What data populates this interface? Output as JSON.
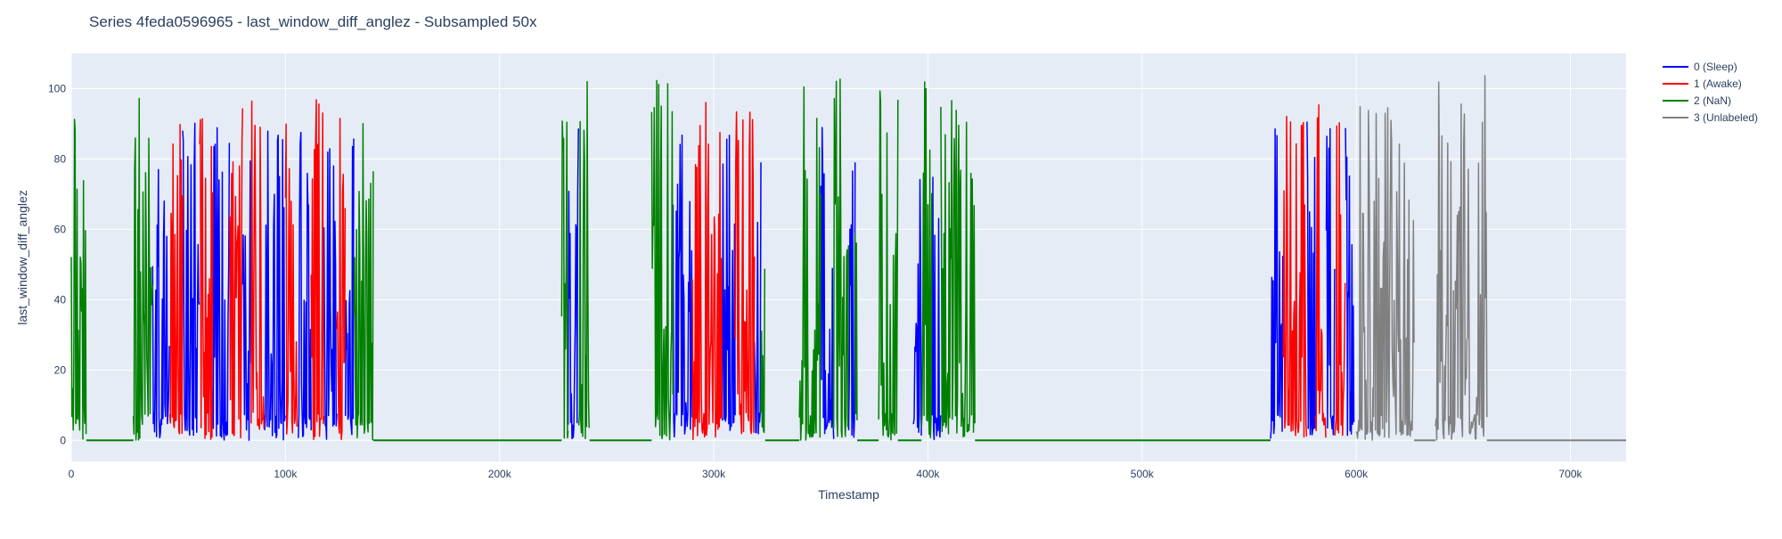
{
  "chart_data": {
    "type": "line",
    "title": "Series 4feda0596965 - last_window_diff_anglez - Subsampled 50x",
    "xlabel": "Timestamp",
    "ylabel": "last_window_diff_anglez",
    "xlim": [
      0,
      726000
    ],
    "ylim": [
      -6,
      110
    ],
    "x_ticks": [
      0,
      100000,
      200000,
      300000,
      400000,
      500000,
      600000,
      700000
    ],
    "x_tick_labels": [
      "0",
      "100k",
      "200k",
      "300k",
      "400k",
      "500k",
      "600k",
      "700k"
    ],
    "y_ticks": [
      0,
      20,
      40,
      60,
      80,
      100
    ],
    "y_tick_labels": [
      "0",
      "20",
      "40",
      "60",
      "80",
      "100"
    ],
    "grid": true,
    "legend_position": "top-right, outside plot",
    "background_color": "#E5ECF6",
    "grid_color": "#ffffff",
    "series": [
      {
        "name": "0 (Sleep)",
        "color": "#0000FF",
        "segments": [
          [
            38000,
            46000
          ],
          [
            52000,
            60000
          ],
          [
            66000,
            74000
          ],
          [
            80000,
            84000
          ],
          [
            90000,
            100000
          ],
          [
            106000,
            112000
          ],
          [
            118000,
            124000
          ],
          [
            128000,
            132000
          ],
          [
            232000,
            237000
          ],
          [
            281000,
            290000
          ],
          [
            304000,
            310000
          ],
          [
            319000,
            322000
          ],
          [
            350000,
            356000
          ],
          [
            363000,
            366000
          ],
          [
            393000,
            397000
          ],
          [
            402000,
            406000
          ],
          [
            560000,
            566000
          ],
          [
            577000,
            581000
          ],
          [
            586000,
            590000
          ],
          [
            595000,
            599000
          ]
        ],
        "amplitude_max": 93
      },
      {
        "name": "1 (Awake)",
        "color": "#FF0000",
        "segments": [
          [
            46000,
            52000
          ],
          [
            60000,
            66000
          ],
          [
            74000,
            80000
          ],
          [
            84000,
            90000
          ],
          [
            100000,
            106000
          ],
          [
            112000,
            118000
          ],
          [
            124000,
            128000
          ],
          [
            290000,
            304000
          ],
          [
            310000,
            319000
          ],
          [
            566000,
            577000
          ],
          [
            581000,
            586000
          ],
          [
            590000,
            595000
          ]
        ],
        "amplitude_max": 97
      },
      {
        "name": "2 (NaN)",
        "color": "#008000",
        "segments": [
          [
            0,
            7000
          ],
          [
            29000,
            38000
          ],
          [
            132000,
            141000
          ],
          [
            229000,
            232000
          ],
          [
            237000,
            242000
          ],
          [
            271000,
            281000
          ],
          [
            322000,
            324000
          ],
          [
            340000,
            350000
          ],
          [
            356000,
            363000
          ],
          [
            366000,
            367000
          ],
          [
            377000,
            386000
          ],
          [
            397000,
            402000
          ],
          [
            406000,
            422000
          ]
        ],
        "amplitude_max": 103
      },
      {
        "name": "3 (Unlabeled)",
        "color": "#808080",
        "segments": [
          [
            600000,
            627000
          ],
          [
            637000,
            661000
          ]
        ],
        "amplitude_max": 104
      }
    ],
    "baseline_segments": [
      {
        "series": "2 (NaN)",
        "range": [
          7000,
          29000
        ]
      },
      {
        "series": "2 (NaN)",
        "range": [
          141000,
          229000
        ]
      },
      {
        "series": "2 (NaN)",
        "range": [
          242000,
          271000
        ]
      },
      {
        "series": "2 (NaN)",
        "range": [
          324000,
          340000
        ]
      },
      {
        "series": "2 (NaN)",
        "range": [
          367000,
          377000
        ]
      },
      {
        "series": "2 (NaN)",
        "range": [
          386000,
          397000
        ]
      },
      {
        "series": "2 (NaN)",
        "range": [
          422000,
          560000
        ]
      },
      {
        "series": "3 (Unlabeled)",
        "range": [
          627000,
          637000
        ]
      },
      {
        "series": "3 (Unlabeled)",
        "range": [
          661000,
          726000
        ]
      }
    ]
  }
}
